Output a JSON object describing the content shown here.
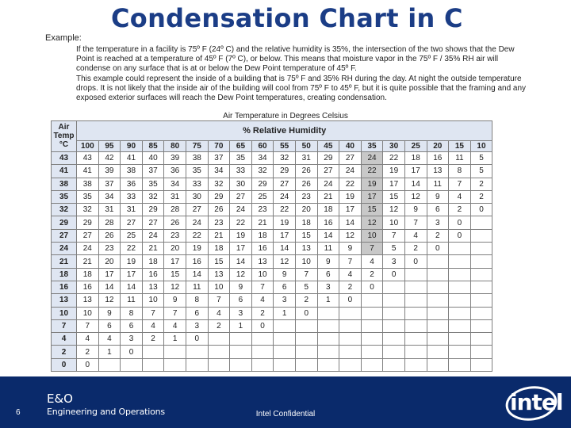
{
  "slide": {
    "title": "Condensation Chart in C",
    "example_label": "Example:",
    "example_paragraphs": [
      "If the temperature in a facility is 75º F (24º C) and the relative humidity is 35%, the intersection of the two shows that the Dew Point is reached at a temperature of 45º F (7º C), or below. This means that moisture vapor in the 75º F / 35% RH air will condense on any surface that is at or below the Dew Point temperature of 45º F.",
      "This example could represent the inside of a building that is 75º F and 35% RH during the day. At night the outside temperature drops. It is not likely that the inside air of the building will cool from 75º F to 45º F, but it is quite possible that the framing and any exposed exterior surfaces will reach the Dew Point temperatures, creating condensation."
    ],
    "table_caption": "Air Temperature in Degrees Celsius"
  },
  "table": {
    "air_header_lines": [
      "Air",
      "Temp",
      "°C"
    ],
    "rh_header": "% Relative Humidity",
    "rh_columns": [
      "100",
      "95",
      "90",
      "85",
      "80",
      "75",
      "70",
      "65",
      "60",
      "55",
      "50",
      "45",
      "40",
      "35",
      "30",
      "25",
      "20",
      "15",
      "10"
    ],
    "highlight_column": 13,
    "highlight_rows": 8,
    "rows": [
      {
        "temp": "43",
        "values": [
          "43",
          "42",
          "41",
          "40",
          "39",
          "38",
          "37",
          "35",
          "34",
          "32",
          "31",
          "29",
          "27",
          "24",
          "22",
          "18",
          "16",
          "11",
          "5"
        ]
      },
      {
        "temp": "41",
        "values": [
          "41",
          "39",
          "38",
          "37",
          "36",
          "35",
          "34",
          "33",
          "32",
          "29",
          "26",
          "27",
          "24",
          "22",
          "19",
          "17",
          "13",
          "8",
          "5"
        ]
      },
      {
        "temp": "38",
        "values": [
          "38",
          "37",
          "36",
          "35",
          "34",
          "33",
          "32",
          "30",
          "29",
          "27",
          "26",
          "24",
          "22",
          "19",
          "17",
          "14",
          "11",
          "7",
          "2"
        ]
      },
      {
        "temp": "35",
        "values": [
          "35",
          "34",
          "33",
          "32",
          "31",
          "30",
          "29",
          "27",
          "25",
          "24",
          "23",
          "21",
          "19",
          "17",
          "15",
          "12",
          "9",
          "4",
          "2"
        ]
      },
      {
        "temp": "32",
        "values": [
          "32",
          "31",
          "31",
          "29",
          "28",
          "27",
          "26",
          "24",
          "23",
          "22",
          "20",
          "18",
          "17",
          "15",
          "12",
          "9",
          "6",
          "2",
          "0"
        ]
      },
      {
        "temp": "29",
        "values": [
          "29",
          "28",
          "27",
          "27",
          "26",
          "24",
          "23",
          "22",
          "21",
          "19",
          "18",
          "16",
          "14",
          "12",
          "10",
          "7",
          "3",
          "0",
          ""
        ]
      },
      {
        "temp": "27",
        "values": [
          "27",
          "26",
          "25",
          "24",
          "23",
          "22",
          "21",
          "19",
          "18",
          "17",
          "15",
          "14",
          "12",
          "10",
          "7",
          "4",
          "2",
          "0",
          ""
        ]
      },
      {
        "temp": "24",
        "values": [
          "24",
          "23",
          "22",
          "21",
          "20",
          "19",
          "18",
          "17",
          "16",
          "14",
          "13",
          "11",
          "9",
          "7",
          "5",
          "2",
          "0",
          "",
          ""
        ]
      },
      {
        "temp": "21",
        "values": [
          "21",
          "20",
          "19",
          "18",
          "17",
          "16",
          "15",
          "14",
          "13",
          "12",
          "10",
          "9",
          "7",
          "4",
          "3",
          "0",
          "",
          "",
          ""
        ]
      },
      {
        "temp": "18",
        "values": [
          "18",
          "17",
          "17",
          "16",
          "15",
          "14",
          "13",
          "12",
          "10",
          "9",
          "7",
          "6",
          "4",
          "2",
          "0",
          "",
          "",
          "",
          ""
        ]
      },
      {
        "temp": "16",
        "values": [
          "16",
          "14",
          "14",
          "13",
          "12",
          "11",
          "10",
          "9",
          "7",
          "6",
          "5",
          "3",
          "2",
          "0",
          "",
          "",
          "",
          "",
          ""
        ]
      },
      {
        "temp": "13",
        "values": [
          "13",
          "12",
          "11",
          "10",
          "9",
          "8",
          "7",
          "6",
          "4",
          "3",
          "2",
          "1",
          "0",
          "",
          "",
          "",
          "",
          "",
          ""
        ]
      },
      {
        "temp": "10",
        "values": [
          "10",
          "9",
          "8",
          "7",
          "7",
          "6",
          "4",
          "3",
          "2",
          "1",
          "0",
          "",
          "",
          "",
          "",
          "",
          "",
          "",
          ""
        ]
      },
      {
        "temp": "7",
        "values": [
          "7",
          "6",
          "6",
          "4",
          "4",
          "3",
          "2",
          "1",
          "0",
          "",
          "",
          "",
          "",
          "",
          "",
          "",
          "",
          "",
          ""
        ]
      },
      {
        "temp": "4",
        "values": [
          "4",
          "4",
          "3",
          "2",
          "1",
          "0",
          "",
          "",
          "",
          "",
          "",
          "",
          "",
          "",
          "",
          "",
          "",
          "",
          ""
        ]
      },
      {
        "temp": "2",
        "values": [
          "2",
          "1",
          "0",
          "",
          "",
          "",
          "",
          "",
          "",
          "",
          "",
          "",
          "",
          "",
          "",
          "",
          "",
          "",
          ""
        ]
      },
      {
        "temp": "0",
        "values": [
          "0",
          "",
          "",
          "",
          "",
          "",
          "",
          "",
          "",
          "",
          "",
          "",
          "",
          "",
          "",
          "",
          "",
          "",
          ""
        ]
      }
    ]
  },
  "footer": {
    "page_number": "6",
    "brand_line1": "E&O",
    "brand_line2": "Engineering and Operations",
    "confidential": "Intel Confidential",
    "logo_text": "intel"
  },
  "colors": {
    "title": "#1b3d86",
    "footer_bg": "#0a2a6b",
    "header_bg": "#dfe6f2",
    "highlight": "#c8c8c8"
  }
}
